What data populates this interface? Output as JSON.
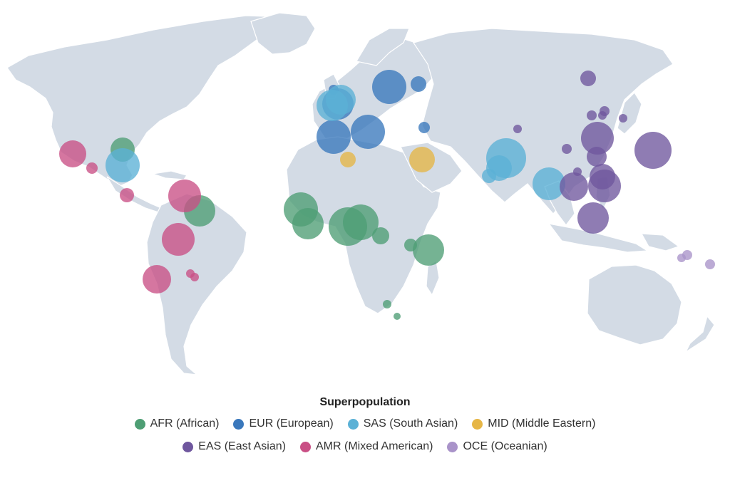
{
  "legend": {
    "title": "Superpopulation",
    "items": [
      {
        "code": "AFR",
        "label": "AFR (African)",
        "color": "#4e9e74"
      },
      {
        "code": "EUR",
        "label": "EUR (European)",
        "color": "#3a78bc"
      },
      {
        "code": "SAS",
        "label": "SAS (South Asian)",
        "color": "#5bb1d6"
      },
      {
        "code": "MID",
        "label": "MID (Middle Eastern)",
        "color": "#e6b646"
      },
      {
        "code": "EAS",
        "label": "EAS (East Asian)",
        "color": "#6f579e"
      },
      {
        "code": "AMR",
        "label": "AMR (Mixed American)",
        "color": "#c94f85"
      },
      {
        "code": "OCE",
        "label": "OCE (Oceanian)",
        "color": "#a993c9"
      }
    ]
  },
  "map_data": {
    "type": "bubble-map",
    "projection": "world",
    "colors": {
      "land": "#d3dbe5"
    }
  }
}
